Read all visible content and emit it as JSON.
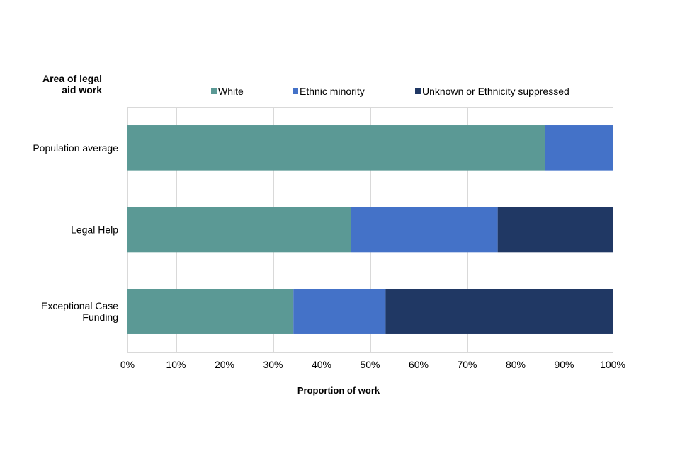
{
  "chart_data": {
    "type": "bar",
    "orientation": "horizontal",
    "stacked": true,
    "ylabel_lines": [
      "Area of legal",
      "aid work"
    ],
    "xlabel": "Proportion of work",
    "categories": [
      [
        "Population average"
      ],
      [
        "Legal Help"
      ],
      [
        "Exceptional Case",
        "Funding"
      ]
    ],
    "series": [
      {
        "name": "White",
        "color": "#5b9995",
        "values": [
          86,
          46,
          34.2
        ]
      },
      {
        "name": "Ethnic minority",
        "color": "#4472c8",
        "values": [
          14,
          30.3,
          19
        ]
      },
      {
        "name": "Unknown or Ethnicity suppressed",
        "color": "#203864",
        "values": [
          0,
          23.7,
          46.8
        ]
      }
    ],
    "xlim": [
      0,
      100
    ],
    "xticks": [
      "0%",
      "10%",
      "20%",
      "30%",
      "40%",
      "50%",
      "60%",
      "70%",
      "80%",
      "90%",
      "100%"
    ],
    "grid": true,
    "legend_position": "top"
  }
}
